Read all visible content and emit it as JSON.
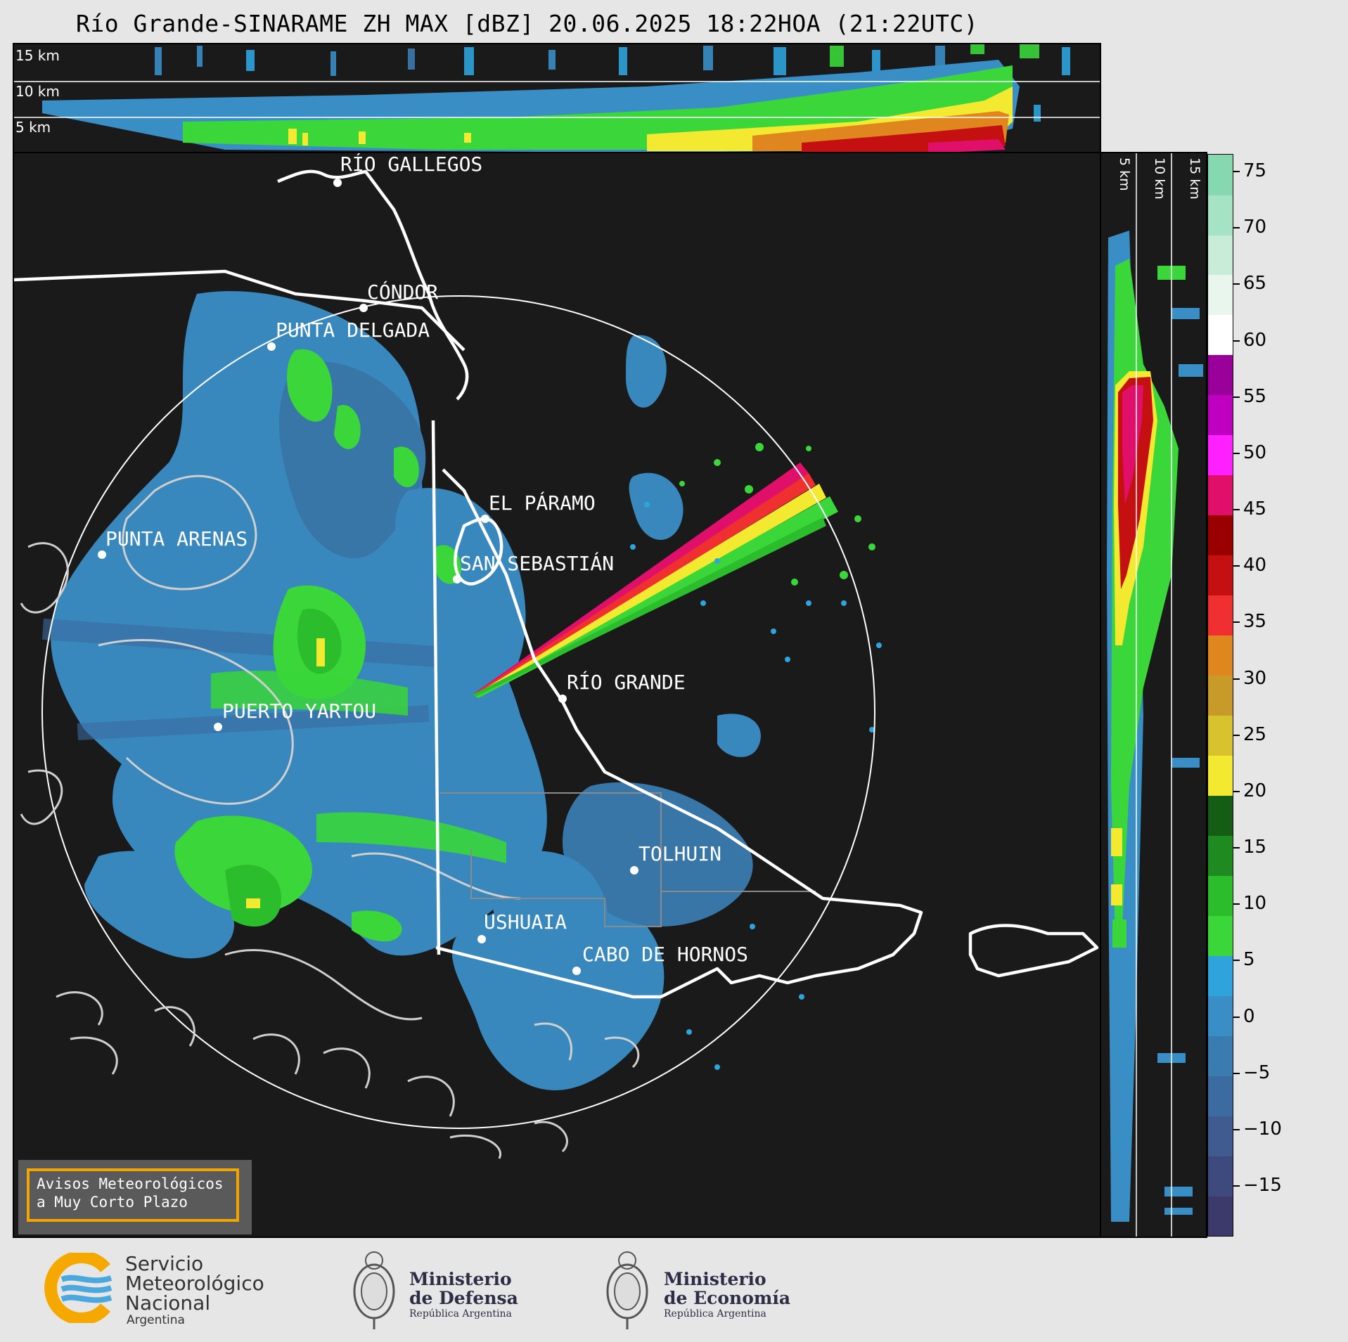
{
  "title": "Río Grande-SINARAME ZH MAX [dBZ] 20.06.2025 18:22HOA (21:22UTC)",
  "top_panel": {
    "height_labels": [
      "15 km",
      "10 km",
      "5 km"
    ]
  },
  "side_panel": {
    "height_labels": [
      "5 km",
      "10 km",
      "15 km"
    ]
  },
  "map": {
    "cities": [
      {
        "name": "RÍO GALLEGOS"
      },
      {
        "name": "CÓNDOR"
      },
      {
        "name": "PUNTA DELGADA"
      },
      {
        "name": "EL PÁRAMO"
      },
      {
        "name": "PUNTA ARENAS"
      },
      {
        "name": "SAN SEBASTIÁN"
      },
      {
        "name": "RÍO GRANDE"
      },
      {
        "name": "PUERTO YARTOU"
      },
      {
        "name": "TOLHUIN"
      },
      {
        "name": "USHUAIA"
      },
      {
        "name": "CABO DE HORNOS"
      }
    ]
  },
  "colorbar": {
    "ticks": [
      "75",
      "70",
      "65",
      "60",
      "55",
      "50",
      "45",
      "40",
      "35",
      "30",
      "25",
      "20",
      "15",
      "10",
      "5",
      "0",
      "−5",
      "−10",
      "−15"
    ],
    "colors": [
      "#3b3a6b",
      "#3e4a7e",
      "#3f5b90",
      "#3b6ba0",
      "#3a7bb0",
      "#3a8ec6",
      "#2fa3dc",
      "#3ad63a",
      "#2bbd2b",
      "#1f8a1f",
      "#155c15",
      "#f2e930",
      "#d8c22e",
      "#c79a2a",
      "#e0861f",
      "#f03030",
      "#c41010",
      "#9a0000",
      "#e0106a",
      "#ff20ff",
      "#c000c0",
      "#9a009a",
      "#ffffff",
      "#e8f6ee",
      "#c8ecd8",
      "#a6e2c4",
      "#86d8b0"
    ]
  },
  "aviso": {
    "line1": "Avisos Meteorológicos",
    "line2": "a Muy Corto Plazo"
  },
  "logos": {
    "smn": {
      "line1": "Servicio",
      "line2": "Meteorológico",
      "line3": "Nacional",
      "line4": "Argentina"
    },
    "defensa": {
      "line1": "Ministerio",
      "line2": "de Defensa",
      "line3": "República Argentina"
    },
    "economia": {
      "line1": "Ministerio",
      "line2": "de Economía",
      "line3": "República Argentina"
    }
  }
}
